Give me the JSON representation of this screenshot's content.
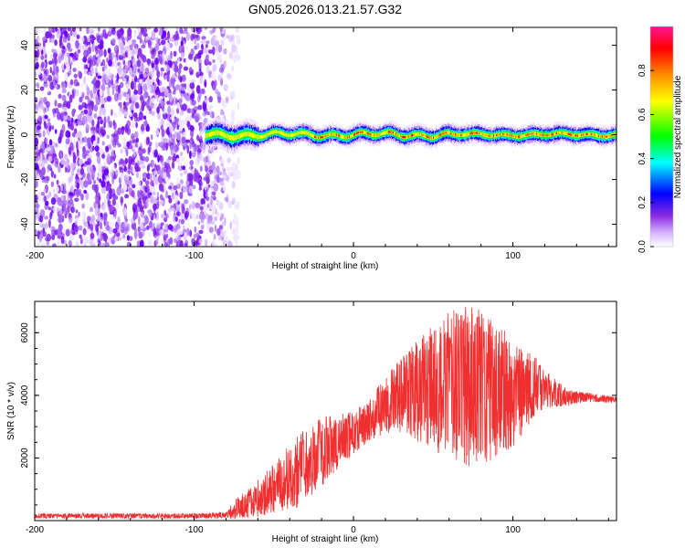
{
  "title": "GN05.2026.013.21.57.G32",
  "chart_data": [
    {
      "type": "heatmap",
      "xlabel": "Height of straight line (km)",
      "ylabel": "Frequency (Hz)",
      "xlim": [
        -200,
        165
      ],
      "ylim": [
        -50,
        48
      ],
      "x_ticks": [
        -200,
        -100,
        0,
        100
      ],
      "y_ticks": [
        -40,
        -20,
        0,
        20,
        40
      ],
      "colorbar": {
        "label": "Normalized spectral amplitude",
        "range": [
          0,
          1
        ],
        "ticks": [
          "0.0",
          "0.2",
          "0.4",
          "0.6",
          "0.8"
        ],
        "colors": [
          "#ffffff",
          "#d8b8ff",
          "#8a2be2",
          "#0000ff",
          "#00ffff",
          "#00ff00",
          "#ffff00",
          "#ff8c00",
          "#ff0000",
          "#ff1493"
        ]
      },
      "description_values": {
        "noise_region_x": [
          -200,
          -80
        ],
        "signal_track_frequency_hz": 0,
        "signal_track_x": [
          -93,
          165
        ]
      }
    },
    {
      "type": "line",
      "xlabel": "Height of straight line (km)",
      "ylabel": "SNR (10 * v/v)",
      "xlim": [
        -200,
        165
      ],
      "ylim": [
        0,
        7000
      ],
      "x_ticks": [
        -200,
        -100,
        0,
        100
      ],
      "y_ticks": [
        2000,
        4000,
        6000
      ],
      "series": [
        {
          "color": "#f03030",
          "envelope": {
            "x": [
              -200,
              -100,
              -80,
              -75,
              -60,
              -45,
              -35,
              -20,
              -10,
              0,
              10,
              20,
              30,
              45,
              55,
              65,
              75,
              85,
              95,
              105,
              115,
              125,
              135,
              145,
              155,
              165
            ],
            "mean": [
              150,
              150,
              180,
              350,
              700,
              1200,
              1600,
              2200,
              2500,
              2800,
              3200,
              3700,
              4000,
              4200,
              4300,
              4300,
              4300,
              4200,
              4100,
              4100,
              4300,
              4100,
              3900,
              3950,
              3900,
              3850
            ],
            "amplitude": [
              80,
              80,
              100,
              300,
              600,
              900,
              1200,
              1100,
              900,
              700,
              700,
              900,
              1200,
              1800,
              2200,
              2500,
              2600,
              2300,
              2000,
              1500,
              900,
              500,
              250,
              150,
              120,
              120
            ]
          }
        }
      ]
    }
  ]
}
